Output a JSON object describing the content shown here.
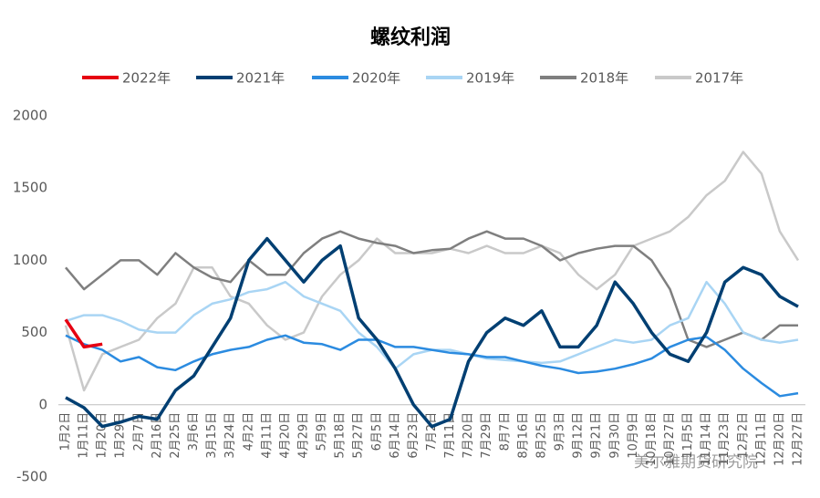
{
  "chart_data": {
    "type": "line",
    "title": "螺纹利润",
    "categories": [
      "1月2日",
      "1月11日",
      "1月20日",
      "1月29日",
      "2月7日",
      "2月16日",
      "2月25日",
      "3月6日",
      "3月15日",
      "3月24日",
      "4月2日",
      "4月11日",
      "4月20日",
      "4月29日",
      "5月9日",
      "5月18日",
      "5月27日",
      "6月5日",
      "6月14日",
      "6月23日",
      "7月2日",
      "7月11日",
      "7月20日",
      "7月29日",
      "8月7日",
      "8月16日",
      "8月25日",
      "9月3日",
      "9月12日",
      "9月21日",
      "9月30日",
      "10月9日",
      "10月18日",
      "10月27日",
      "11月5日",
      "11月14日",
      "11月23日",
      "12月2日",
      "12月11日",
      "12月20日",
      "12月27日"
    ],
    "series": [
      {
        "name": "2022年",
        "color": "#e60012",
        "values": [
          590,
          400,
          420,
          null,
          null,
          null,
          null,
          null,
          null,
          null,
          null,
          null,
          null,
          null,
          null,
          null,
          null,
          null,
          null,
          null,
          null,
          null,
          null,
          null,
          null,
          null,
          null,
          null,
          null,
          null,
          null,
          null,
          null,
          null,
          null,
          null,
          null,
          null,
          null,
          null,
          null
        ]
      },
      {
        "name": "2021年",
        "color": "#003f72",
        "values": [
          50,
          -20,
          -150,
          -120,
          -80,
          -100,
          100,
          200,
          400,
          600,
          1000,
          1150,
          1000,
          850,
          1000,
          1100,
          600,
          450,
          250,
          0,
          -150,
          -100,
          300,
          500,
          600,
          550,
          650,
          400,
          400,
          550,
          850,
          700,
          500,
          350,
          300,
          500,
          850,
          950,
          900,
          750,
          680
        ]
      },
      {
        "name": "2020年",
        "color": "#2b8be0",
        "values": [
          480,
          420,
          380,
          300,
          330,
          260,
          240,
          300,
          350,
          380,
          400,
          450,
          480,
          430,
          420,
          380,
          450,
          450,
          400,
          400,
          380,
          360,
          350,
          330,
          330,
          300,
          270,
          250,
          220,
          230,
          250,
          280,
          320,
          400,
          450,
          470,
          380,
          250,
          150,
          60,
          80
        ]
      },
      {
        "name": "2019年",
        "color": "#a9d5f4",
        "values": [
          580,
          620,
          620,
          580,
          520,
          500,
          500,
          620,
          700,
          730,
          780,
          800,
          850,
          750,
          700,
          650,
          500,
          400,
          250,
          350,
          380,
          380,
          350,
          320,
          310,
          300,
          290,
          300,
          350,
          400,
          450,
          430,
          450,
          550,
          600,
          850,
          700,
          500,
          450,
          430,
          450
        ]
      },
      {
        "name": "2018年",
        "color": "#7f7f7f",
        "values": [
          950,
          800,
          900,
          1000,
          1000,
          900,
          1050,
          950,
          880,
          850,
          1000,
          900,
          900,
          1050,
          1150,
          1200,
          1150,
          1120,
          1100,
          1050,
          1070,
          1080,
          1150,
          1200,
          1150,
          1150,
          1100,
          1000,
          1050,
          1080,
          1100,
          1100,
          1000,
          800,
          450,
          400,
          450,
          500,
          450,
          550,
          550
        ]
      },
      {
        "name": "2017年",
        "color": "#c9c9c9",
        "values": [
          550,
          100,
          350,
          400,
          450,
          600,
          700,
          950,
          950,
          750,
          700,
          550,
          450,
          500,
          750,
          900,
          1000,
          1150,
          1050,
          1050,
          1050,
          1080,
          1050,
          1100,
          1050,
          1050,
          1100,
          1050,
          900,
          800,
          900,
          1100,
          1150,
          1200,
          1300,
          1450,
          1550,
          1750,
          1600,
          1200,
          1000
        ]
      }
    ],
    "ylim": [
      -500,
      2000
    ],
    "yticks": [
      -500,
      0,
      500,
      1000,
      1500,
      2000
    ],
    "grid": false,
    "legend": "top",
    "watermark": "美尔雅期货研究院"
  }
}
